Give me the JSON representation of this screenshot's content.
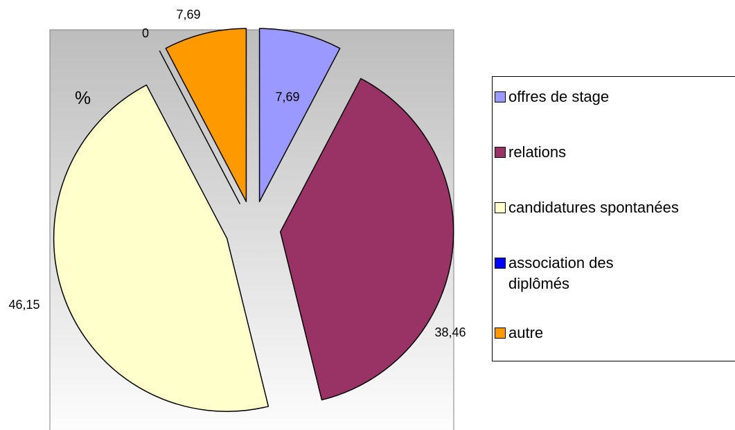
{
  "chart_data": {
    "type": "pie",
    "annotation": "%",
    "categories": [
      "offres de stage",
      "relations",
      "candidatures spontanées",
      "association des diplômés",
      "autre"
    ],
    "values": [
      7.69,
      38.46,
      46.15,
      0,
      7.69
    ],
    "value_labels": [
      "7,69",
      "38,46",
      "46,15",
      "0",
      "7,69"
    ],
    "colors": [
      "#9999ff",
      "#993366",
      "#ffffcc",
      "#0000ff",
      "#ff9900"
    ],
    "legend": "right"
  }
}
